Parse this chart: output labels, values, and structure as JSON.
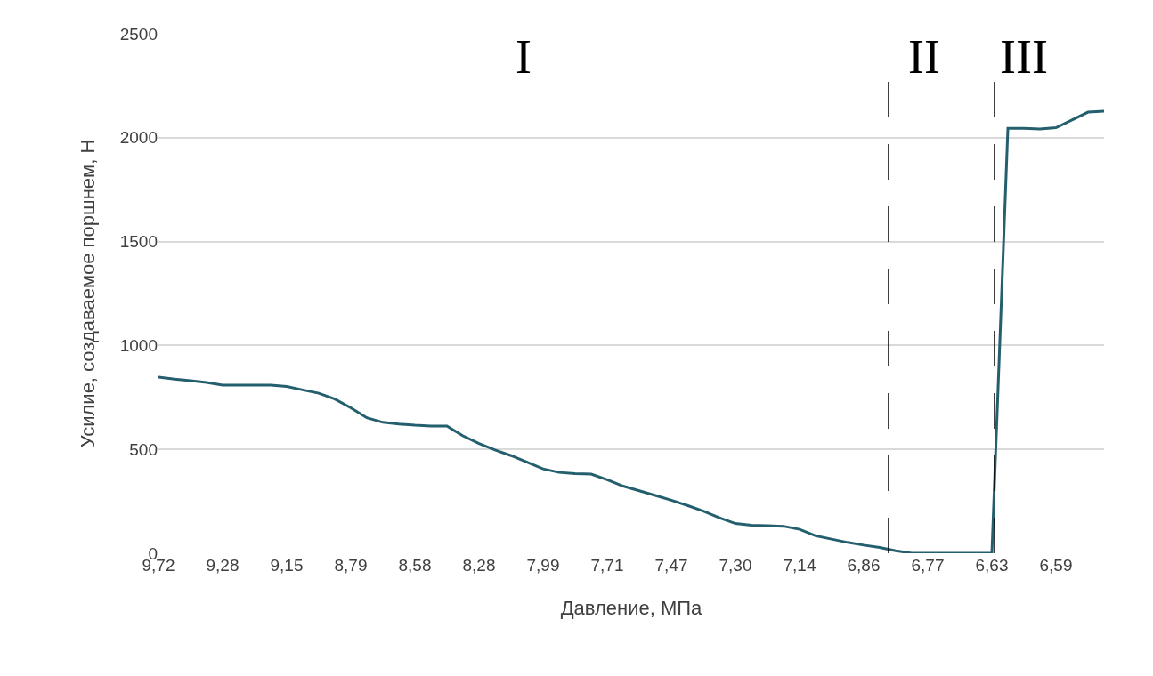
{
  "chart_data": {
    "type": "line",
    "xlabel": "Давление, МПа",
    "ylabel": "Усилие, создаваемое поршнем, Н",
    "categories": [
      "9,72",
      null,
      null,
      null,
      "9,28",
      null,
      null,
      null,
      "9,15",
      null,
      null,
      null,
      "8,79",
      null,
      null,
      null,
      "8,58",
      null,
      null,
      null,
      "8,28",
      null,
      null,
      null,
      "7,99",
      null,
      null,
      null,
      "7,71",
      null,
      null,
      null,
      "7,47",
      null,
      null,
      null,
      "7,30",
      null,
      null,
      null,
      "7,14",
      null,
      null,
      null,
      "6,86",
      null,
      null,
      null,
      "6,77",
      null,
      null,
      null,
      "6,63",
      null,
      null,
      null,
      "6,59",
      null,
      null,
      null
    ],
    "series": [
      {
        "color": "#245f6e",
        "values": [
          848,
          838,
          830,
          822,
          809,
          809,
          809,
          809,
          803,
          786,
          770,
          742,
          700,
          652,
          630,
          622,
          616,
          612,
          612,
          565,
          528,
          497,
          470,
          438,
          406,
          389,
          383,
          381,
          354,
          323,
          301,
          278,
          255,
          230,
          203,
          171,
          143,
          135,
          133,
          130,
          115,
          84,
          68,
          52,
          39,
          28,
          12,
          0,
          0,
          0,
          0,
          0,
          0,
          2045,
          2045,
          2042,
          2048,
          2085,
          2123,
          2128
        ]
      }
    ],
    "ylim": [
      0,
      2500
    ],
    "yticks": [
      0,
      500,
      1000,
      1500,
      2000,
      2500
    ],
    "grid": "y",
    "marker": "none",
    "line_style": "solid",
    "annotations": [
      "I",
      "II",
      "III"
    ]
  }
}
